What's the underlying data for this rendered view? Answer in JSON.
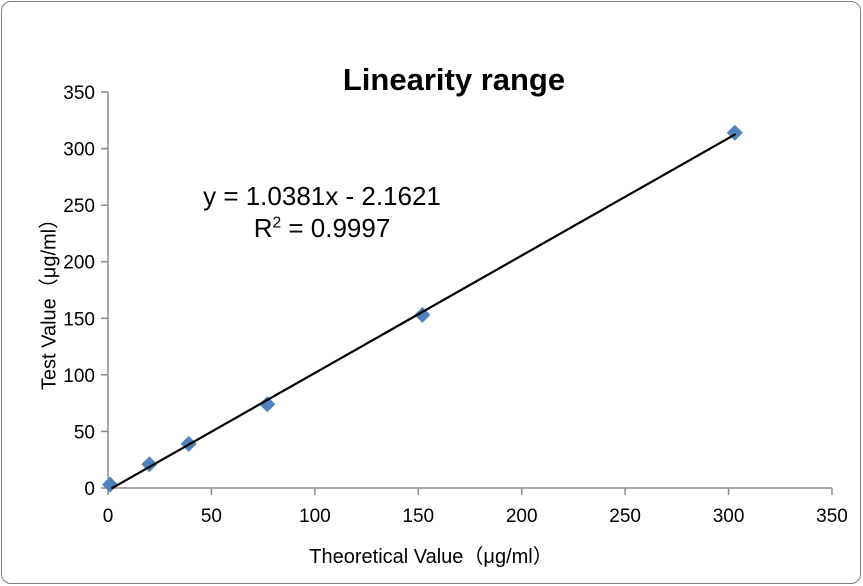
{
  "chart_data": {
    "type": "scatter",
    "title": "Linearity range",
    "xlabel": "Theoretical Value（μg/ml）",
    "ylabel": "Test  Value（μg/ml）",
    "x": [
      1,
      20,
      39,
      77,
      152,
      303
    ],
    "y": [
      3,
      21,
      39,
      74,
      153,
      314
    ],
    "xlim": [
      0,
      350
    ],
    "ylim": [
      0,
      350
    ],
    "xticks": [
      0,
      50,
      100,
      150,
      200,
      250,
      300,
      350
    ],
    "yticks": [
      0,
      50,
      100,
      150,
      200,
      250,
      300,
      350
    ],
    "grid": false,
    "legend": false,
    "marker": {
      "shape": "diamond",
      "color": "#4F81BD",
      "half_size": 8
    },
    "trendline": {
      "slope": 1.0381,
      "intercept": -2.1621,
      "x_end": 303,
      "color": "#000000",
      "width": 2.2,
      "equation": "y = 1.0381x - 2.1621",
      "r_squared": 0.9997
    },
    "axis_color": "#8C8C8C",
    "text_color": "#000000",
    "background": "#FFFFFF",
    "border_color": "#7F7F7F"
  },
  "annotation": {
    "equation_line": "y = 1.0381x - 2.1621",
    "r_label": "R",
    "r_sup": "2",
    "r_value": " = 0.9997"
  }
}
